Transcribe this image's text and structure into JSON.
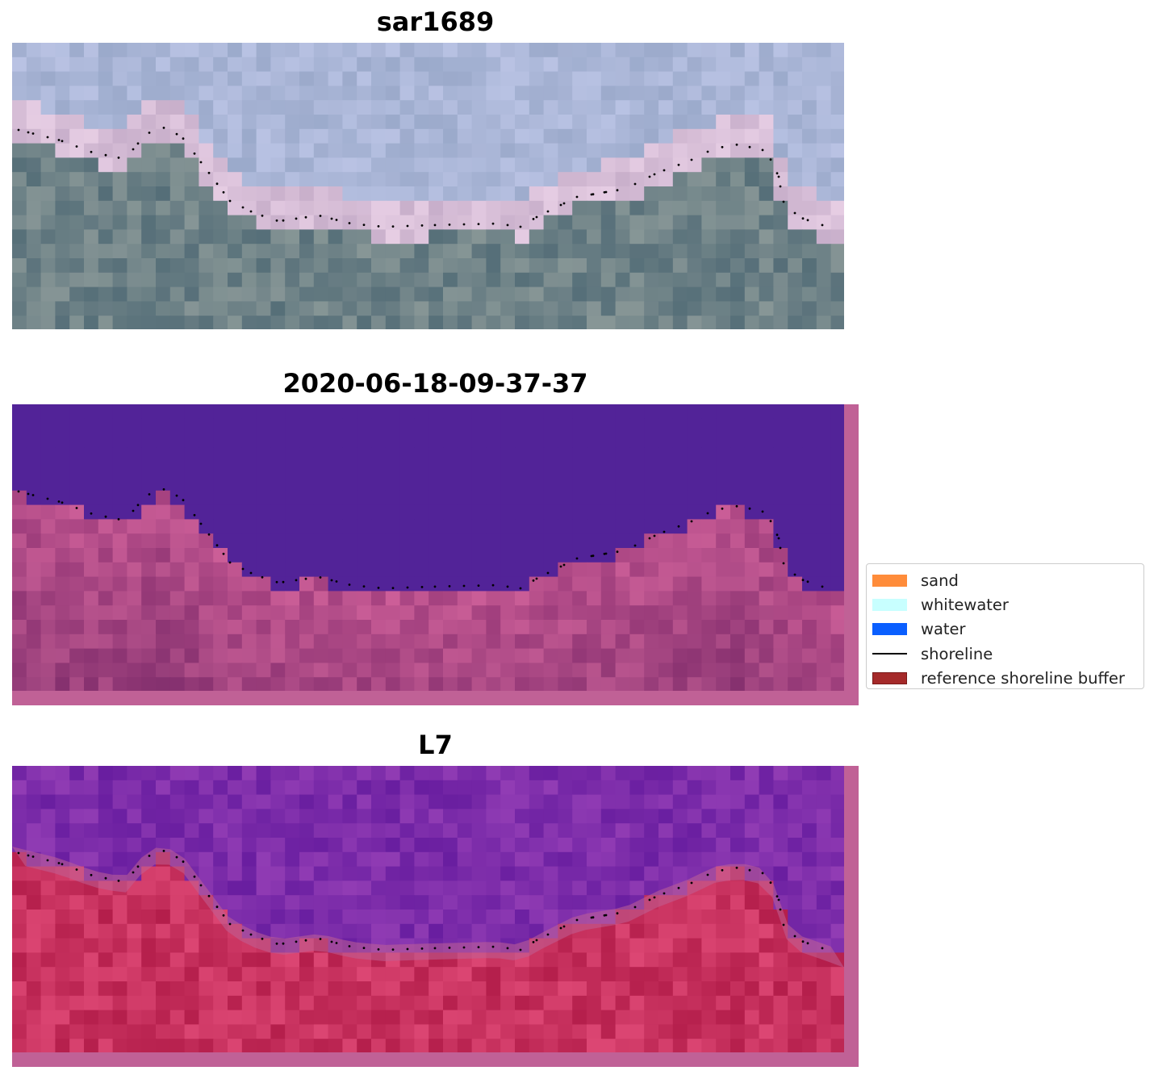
{
  "panels": [
    {
      "title": "sar1689",
      "variant": "rgb"
    },
    {
      "title": "2020-06-18-09-37-37",
      "variant": "classified"
    },
    {
      "title": "L7",
      "variant": "index"
    }
  ],
  "legend": [
    {
      "label": "sand",
      "color": "#ff8c3a",
      "kind": "patch"
    },
    {
      "label": "whitewater",
      "color": "#c8ffff",
      "kind": "patch"
    },
    {
      "label": "water",
      "color": "#0a5fff",
      "kind": "patch"
    },
    {
      "label": "shoreline",
      "color": "#000000",
      "kind": "line"
    },
    {
      "label": "reference shoreline buffer",
      "color": "#a52a2a",
      "edge": "#7a1a1a",
      "kind": "patch"
    }
  ],
  "colors": {
    "buffer_overlay": "#c06196",
    "water_class": "#522398",
    "shoreline_points": "#000000"
  }
}
